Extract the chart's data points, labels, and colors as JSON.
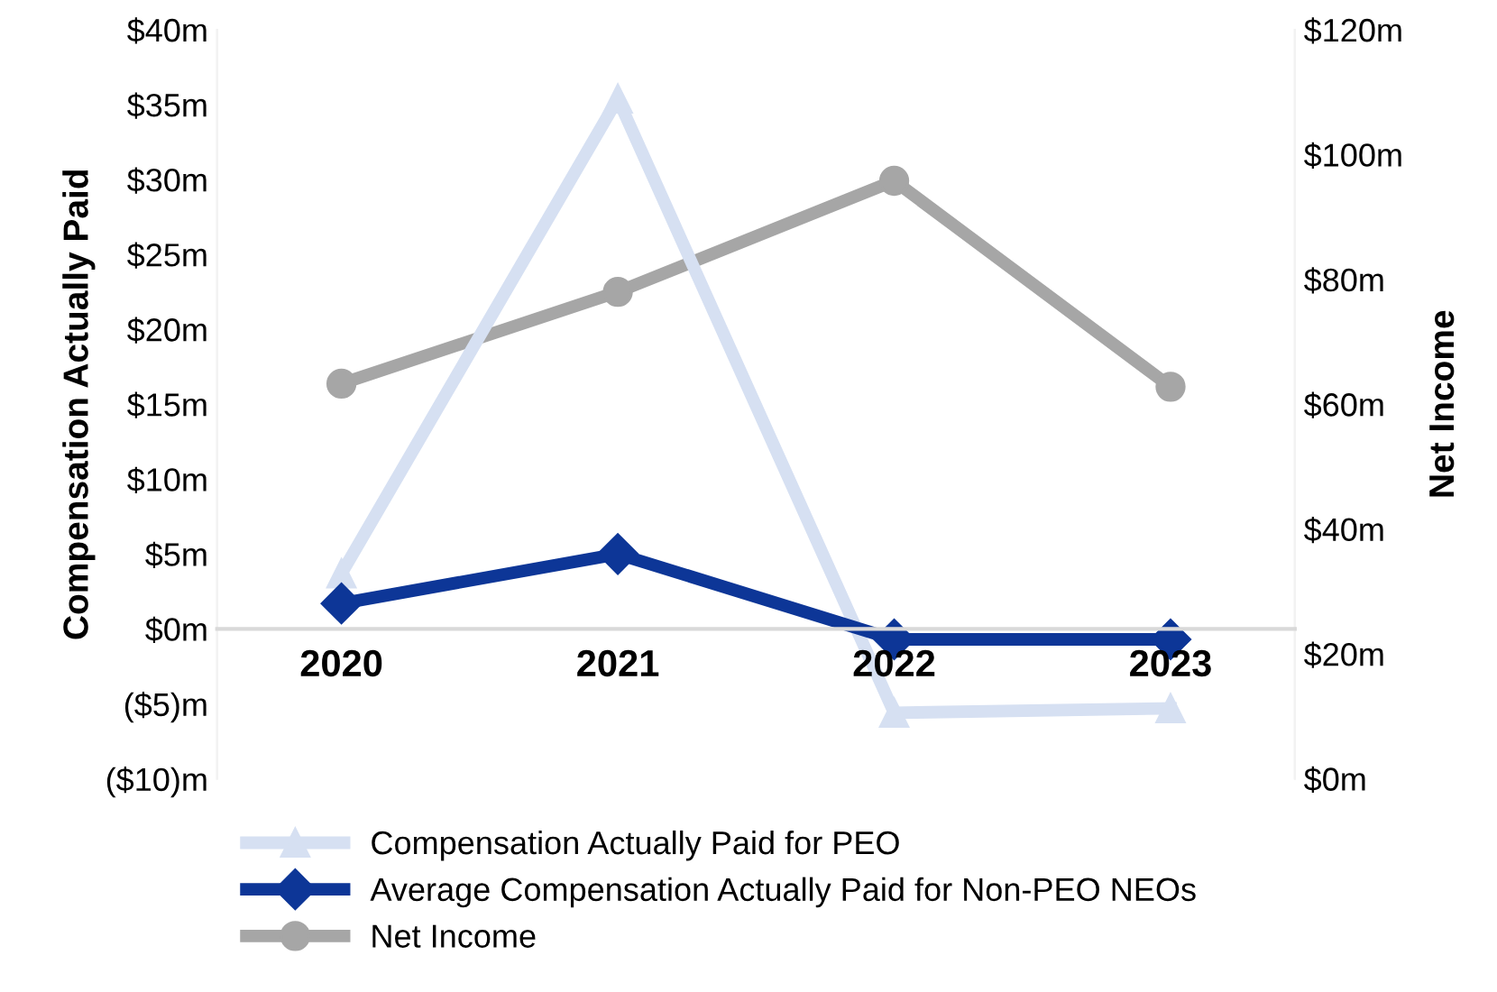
{
  "chart_data": {
    "type": "line",
    "categories": [
      "2020",
      "2021",
      "2022",
      "2023"
    ],
    "ylabel": "Compensation Actually Paid",
    "y2label": "Net Income",
    "ylim": [
      -10,
      40
    ],
    "yticks": [
      {
        "value": -10,
        "label": "($10)m"
      },
      {
        "value": -5,
        "label": "($5)m"
      },
      {
        "value": 0,
        "label": "$0m"
      },
      {
        "value": 5,
        "label": "$5m"
      },
      {
        "value": 10,
        "label": "$10m"
      },
      {
        "value": 15,
        "label": "$15m"
      },
      {
        "value": 20,
        "label": "$20m"
      },
      {
        "value": 25,
        "label": "$25m"
      },
      {
        "value": 30,
        "label": "$30m"
      },
      {
        "value": 35,
        "label": "$35m"
      },
      {
        "value": 40,
        "label": "$40m"
      }
    ],
    "y2lim": [
      0,
      120
    ],
    "y2ticks": [
      {
        "value": 0,
        "label": "$0m"
      },
      {
        "value": 20,
        "label": "$20m"
      },
      {
        "value": 40,
        "label": "$40m"
      },
      {
        "value": 60,
        "label": "$60m"
      },
      {
        "value": 80,
        "label": "$80m"
      },
      {
        "value": 100,
        "label": "$100m"
      },
      {
        "value": 120,
        "label": "$120m"
      }
    ],
    "series": [
      {
        "name": "Compensation Actually Paid for PEO",
        "color": "#d6e0f2",
        "marker": "triangle",
        "values": [
          3.7,
          35.4,
          -5.6,
          -5.3
        ]
      },
      {
        "name": "Average Compensation Actually Paid for Non-PEO NEOs",
        "color": "#0d3697",
        "marker": "diamond",
        "values": [
          1.7,
          5.0,
          -0.7,
          -0.7
        ]
      },
      {
        "name": "Net Income",
        "color": "#a6a6a6",
        "marker": "circle",
        "axis": "y2",
        "values": [
          63.3,
          78,
          95.8,
          62.8
        ]
      }
    ],
    "legend": "bottom",
    "grid": false
  }
}
